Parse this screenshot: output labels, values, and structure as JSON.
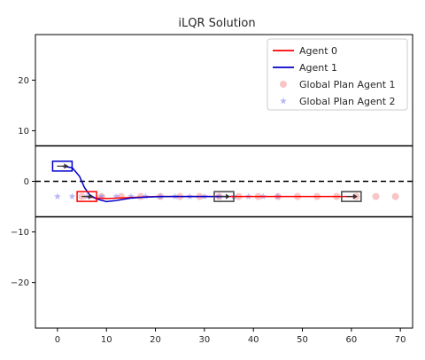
{
  "chart_data": {
    "type": "line",
    "title": "iLQR Solution",
    "xlabel": "",
    "ylabel": "",
    "xlim": [
      -4.5,
      72.5
    ],
    "ylim": [
      -29,
      29
    ],
    "x_ticks": [
      0,
      10,
      20,
      30,
      40,
      50,
      60,
      70
    ],
    "y_ticks": [
      20,
      10,
      0,
      -10,
      -20
    ],
    "grid": false,
    "legend_position": "top-right",
    "lane_lines": [
      {
        "y": 7,
        "style": "solid"
      },
      {
        "y": 0,
        "style": "dashed"
      },
      {
        "y": -7,
        "style": "solid"
      }
    ],
    "series": [
      {
        "name": "Agent 0",
        "kind": "line",
        "color": "#ff0000",
        "points": [
          [
            6,
            -3
          ],
          [
            8,
            -3.3
          ],
          [
            10,
            -3.4
          ],
          [
            15,
            -3.2
          ],
          [
            20,
            -3
          ],
          [
            30,
            -3
          ],
          [
            40,
            -3
          ],
          [
            50,
            -3
          ],
          [
            61,
            -3
          ]
        ]
      },
      {
        "name": "Agent 1",
        "kind": "line",
        "color": "#0000cc",
        "points": [
          [
            1,
            3
          ],
          [
            3,
            2.7
          ],
          [
            4.5,
            1
          ],
          [
            5.5,
            -1.2
          ],
          [
            6.5,
            -2.6
          ],
          [
            8,
            -3.5
          ],
          [
            10,
            -4
          ],
          [
            12,
            -3.8
          ],
          [
            15,
            -3.3
          ],
          [
            18,
            -3.1
          ],
          [
            22,
            -3
          ],
          [
            30,
            -3
          ],
          [
            35,
            -3
          ]
        ]
      },
      {
        "name": "Global Plan Agent 1",
        "kind": "scatter",
        "marker": "circle",
        "color": "#f08080",
        "points": [
          [
            5,
            -3
          ],
          [
            9,
            -3
          ],
          [
            13,
            -3
          ],
          [
            17,
            -3
          ],
          [
            21,
            -3
          ],
          [
            25,
            -3
          ],
          [
            29,
            -3
          ],
          [
            33,
            -3
          ],
          [
            37,
            -3
          ],
          [
            41,
            -3
          ],
          [
            45,
            -3
          ],
          [
            49,
            -3
          ],
          [
            53,
            -3
          ],
          [
            57,
            -3
          ],
          [
            61,
            -3
          ],
          [
            65,
            -3
          ],
          [
            69,
            -3
          ]
        ]
      },
      {
        "name": "Global Plan Agent 2",
        "kind": "scatter",
        "marker": "star",
        "color": "#8080f0",
        "points": [
          [
            0,
            -3
          ],
          [
            3,
            -3
          ],
          [
            6,
            -3
          ],
          [
            9,
            -3
          ],
          [
            12,
            -3
          ],
          [
            15,
            -3
          ],
          [
            18,
            -3
          ],
          [
            21,
            -3
          ],
          [
            24,
            -3
          ],
          [
            27,
            -3
          ],
          [
            30,
            -3
          ],
          [
            33,
            -3
          ],
          [
            36,
            -3
          ],
          [
            39,
            -3
          ],
          [
            42,
            -3
          ],
          [
            45,
            -3
          ]
        ]
      }
    ],
    "vehicles": [
      {
        "name": "agent0-start-box",
        "color": "#ff0000",
        "x": 6,
        "y": -3
      },
      {
        "name": "agent1-start-box",
        "color": "#0000cc",
        "x": 1,
        "y": 3
      },
      {
        "name": "agent1-end-box",
        "color": "#444444",
        "x": 34,
        "y": -3
      },
      {
        "name": "agent0-end-box",
        "color": "#444444",
        "x": 60,
        "y": -3
      }
    ]
  }
}
